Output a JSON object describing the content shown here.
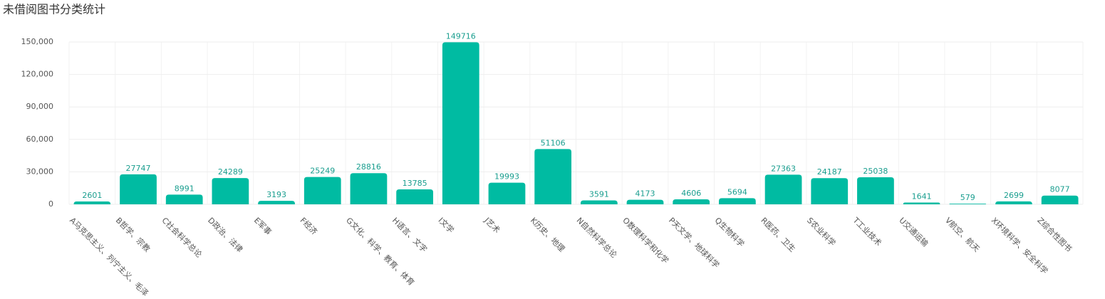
{
  "chart_data": {
    "type": "bar",
    "title": "未借阅图书分类统计",
    "categories": [
      "A马克思主义、列宁主义、毛泽",
      "B哲学、宗教",
      "C社会科学总论",
      "D政治、法律",
      "E军事",
      "F经济",
      "G文化、科学、教育、体育",
      "H语言、文字",
      "I文学",
      "J艺术",
      "K历史、地理",
      "N自然科学总论",
      "O数理科学和化学",
      "P天文学、地球科学",
      "Q生物科学",
      "R医药、卫生",
      "S农业科学",
      "T工业技术",
      "U交通运输",
      "V航空、航天",
      "X环境科学、安全科学",
      "Z综合性图书"
    ],
    "values": [
      2601,
      27747,
      8991,
      24289,
      3193,
      25249,
      28816,
      13785,
      149716,
      19993,
      51106,
      3591,
      4173,
      4606,
      5694,
      27363,
      24187,
      25038,
      1641,
      579,
      2699,
      8077
    ],
    "color": "#00bba2",
    "ylim": [
      0,
      150000
    ],
    "yticks": [
      0,
      {
        "value": 30000,
        "label": "30,000"
      },
      {
        "value": 60000,
        "label": "60,000"
      },
      {
        "value": 90000,
        "label": "90,000"
      },
      {
        "value": 120000,
        "label": "120,000"
      },
      {
        "value": 150000,
        "label": "150,000"
      }
    ],
    "grid": true
  }
}
